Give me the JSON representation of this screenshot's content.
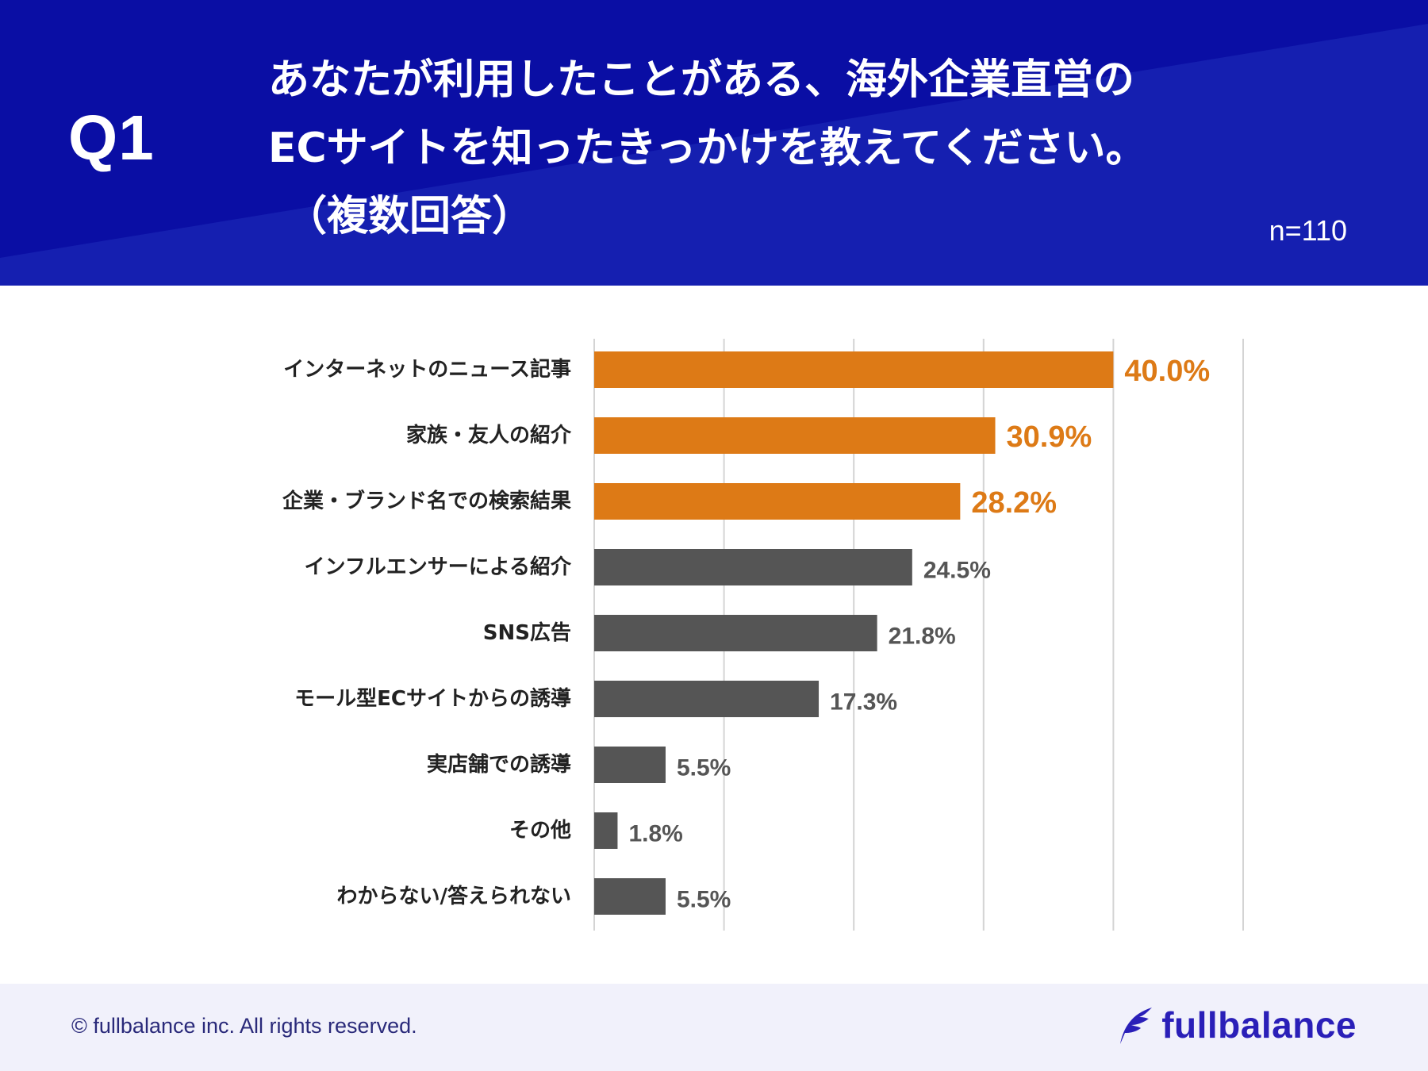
{
  "header": {
    "question_label": "Q1",
    "title_lines": [
      "あなたが利用したことがある、海外企業直営の",
      "ECサイトを知ったきっかけを教えてください。",
      "（複数回答）"
    ],
    "sample_size": "n=110",
    "bg_color": "#0a0ea4"
  },
  "chart_data": {
    "type": "bar",
    "orientation": "horizontal",
    "title": "あなたが利用したことがある、海外企業直営のECサイトを知ったきっかけを教えてください。（複数回答）",
    "categories": [
      "インターネットのニュース記事",
      "家族・友人の紹介",
      "企業・ブランド名での検索結果",
      "インフルエンサーによる紹介",
      "SNS広告",
      "モール型ECサイトからの誘導",
      "実店舗での誘導",
      "その他",
      "わからない/答えられない"
    ],
    "values": [
      40.0,
      30.9,
      28.2,
      24.5,
      21.8,
      17.3,
      5.5,
      1.8,
      5.5
    ],
    "value_labels": [
      "40.0%",
      "30.9%",
      "28.2%",
      "24.5%",
      "21.8%",
      "17.3%",
      "5.5%",
      "1.8%",
      "5.5%"
    ],
    "highlighted": [
      true,
      true,
      true,
      false,
      false,
      false,
      false,
      false,
      false
    ],
    "xlim": [
      0,
      50
    ],
    "gridline_step": 10,
    "grid": true,
    "unit": "%",
    "colors": {
      "highlight": "#dd7a16",
      "normal": "#555555",
      "grid": "#d4d4d4"
    }
  },
  "footer": {
    "copyright": "© fullbalance inc. All rights reserved.",
    "logo_text": "fullbalance",
    "logo_color": "#2a1fb8"
  }
}
